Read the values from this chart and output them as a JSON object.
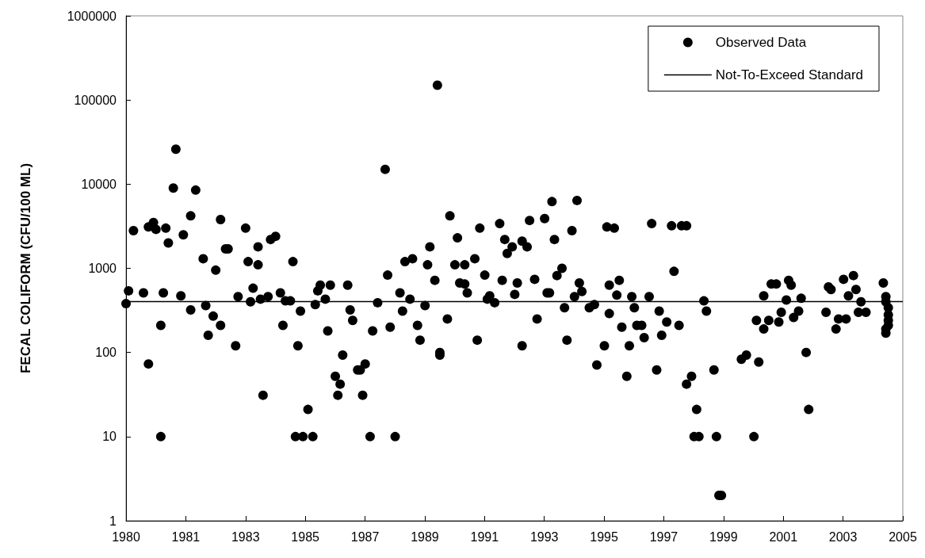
{
  "chart_data": {
    "type": "scatter",
    "ylabel": "FECAL COLIFORM (CFU/100 ML)",
    "x": [
      "1980-01",
      "1980-02",
      "1980-04",
      "1980-08",
      "1980-10",
      "1980-10",
      "1980-12",
      "1981-01",
      "1981-03",
      "1981-03",
      "1981-04",
      "1981-05",
      "1981-06",
      "1981-08",
      "1981-09",
      "1981-11",
      "1981-12",
      "1982-03",
      "1982-03",
      "1982-05",
      "1982-08",
      "1982-09",
      "1982-10",
      "1982-12",
      "1983-01",
      "1983-03",
      "1983-03",
      "1983-05",
      "1983-06",
      "1983-09",
      "1983-10",
      "1984-01",
      "1984-02",
      "1984-03",
      "1984-04",
      "1984-06",
      "1984-06",
      "1984-07",
      "1984-08",
      "1984-10",
      "1984-11",
      "1985-01",
      "1985-03",
      "1985-04",
      "1985-05",
      "1985-07",
      "1985-08",
      "1985-09",
      "1985-10",
      "1985-11",
      "1985-12",
      "1986-02",
      "1986-04",
      "1986-05",
      "1986-06",
      "1986-07",
      "1986-09",
      "1986-10",
      "1986-11",
      "1987-01",
      "1987-02",
      "1987-03",
      "1987-04",
      "1987-06",
      "1987-07",
      "1987-08",
      "1987-10",
      "1987-11",
      "1987-12",
      "1988-01",
      "1988-03",
      "1988-04",
      "1988-06",
      "1988-09",
      "1988-10",
      "1988-11",
      "1989-01",
      "1989-03",
      "1989-04",
      "1989-05",
      "1989-07",
      "1989-08",
      "1989-10",
      "1989-11",
      "1990-01",
      "1990-02",
      "1990-03",
      "1990-05",
      "1990-06",
      "1990-07",
      "1990-07",
      "1990-10",
      "1990-11",
      "1991-01",
      "1991-02",
      "1991-03",
      "1991-05",
      "1991-05",
      "1991-06",
      "1991-09",
      "1991-10",
      "1991-11",
      "1992-01",
      "1992-02",
      "1992-03",
      "1992-05",
      "1992-07",
      "1992-08",
      "1992-09",
      "1992-10",
      "1992-12",
      "1993-01",
      "1993-02",
      "1993-04",
      "1993-04",
      "1993-06",
      "1993-07",
      "1993-09",
      "1993-10",
      "1994-01",
      "1994-02",
      "1994-03",
      "1994-04",
      "1994-05",
      "1994-06",
      "1994-08",
      "1994-09",
      "1994-10",
      "1994-12",
      "1995-01",
      "1995-02",
      "1995-03",
      "1995-04",
      "1995-07",
      "1995-09",
      "1995-10",
      "1996-01",
      "1996-02",
      "1996-03",
      "1996-03",
      "1996-05",
      "1996-06",
      "1996-07",
      "1996-08",
      "1996-10",
      "1996-11",
      "1996-12",
      "1997-01",
      "1997-02",
      "1997-04",
      "1997-05",
      "1997-07",
      "1997-08",
      "1997-10",
      "1997-11",
      "1997-12",
      "1998-02",
      "1998-04",
      "1998-05",
      "1998-07",
      "1998-08",
      "1998-10",
      "1998-10",
      "1998-12",
      "1999-01",
      "1999-02",
      "1999-03",
      "1999-05",
      "1999-06",
      "1999-09",
      "1999-10",
      "1999-11",
      "1999-12",
      "2000-08",
      "2000-10",
      "2001-01",
      "2001-02",
      "2001-03",
      "2001-05",
      "2001-05",
      "2001-07",
      "2001-08",
      "2001-10",
      "2001-11",
      "2001-12",
      "2002-02",
      "2002-03",
      "2002-04",
      "2002-05",
      "2002-07",
      "2002-08",
      "2002-10",
      "2002-11",
      "2003-06",
      "2003-07",
      "2003-08",
      "2003-10",
      "2003-11",
      "2004-01",
      "2004-02",
      "2004-03",
      "2004-05",
      "2004-06",
      "2004-07",
      "2004-08",
      "2004-10",
      "2005-05",
      "2005-06",
      "2005-06",
      "2005-07",
      "2005-07",
      "2005-07",
      "2005-07",
      "2005-06",
      "2005-06"
    ],
    "series": [
      {
        "name": "Observed Data",
        "color": "#000000",
        "values": [
          380,
          540,
          2800,
          510,
          3100,
          73,
          3500,
          2900,
          210,
          10,
          510,
          3000,
          2000,
          9000,
          26000,
          470,
          2500,
          4200,
          320,
          8500,
          1300,
          360,
          160,
          270,
          950,
          210,
          3800,
          1700,
          1700,
          120,
          460,
          3000,
          1200,
          400,
          580,
          1100,
          1800,
          430,
          31,
          460,
          2200,
          2400,
          510,
          210,
          410,
          410,
          1200,
          10,
          120,
          310,
          10,
          21,
          10,
          370,
          540,
          630,
          430,
          180,
          630,
          52,
          31,
          42,
          93,
          630,
          320,
          240,
          62,
          62,
          31,
          73,
          10,
          180,
          390,
          15000,
          830,
          200,
          10,
          510,
          310,
          1200,
          430,
          1300,
          210,
          140,
          360,
          1100,
          1800,
          720,
          150000,
          100,
          93,
          250,
          4200,
          1100,
          2300,
          670,
          1100,
          650,
          510,
          1300,
          140,
          3000,
          830,
          430,
          470,
          390,
          3400,
          720,
          2200,
          1500,
          1800,
          490,
          670,
          120,
          2100,
          1800,
          3700,
          740,
          250,
          3900,
          510,
          510,
          6200,
          2200,
          820,
          1000,
          340,
          140,
          2800,
          460,
          6400,
          670,
          530,
          340,
          370,
          71,
          120,
          3100,
          630,
          290,
          3000,
          480,
          720,
          200,
          52,
          120,
          460,
          340,
          210,
          210,
          150,
          460,
          3400,
          62,
          310,
          160,
          230,
          3200,
          920,
          210,
          3200,
          3200,
          42,
          52,
          10,
          21,
          10,
          410,
          310,
          62,
          10,
          2,
          2,
          83,
          93,
          10,
          240,
          77,
          190,
          470,
          240,
          650,
          650,
          230,
          300,
          420,
          720,
          630,
          260,
          310,
          440,
          100,
          21,
          300,
          600,
          560,
          190,
          250,
          740,
          250,
          470,
          820,
          560,
          300,
          400,
          300,
          670,
          460,
          400,
          340,
          280,
          240,
          210,
          190,
          170
        ]
      }
    ],
    "ref_lines": [
      {
        "axis": "y",
        "value": 400,
        "label": "Not-To-Exceed Standard",
        "color": "#000000"
      }
    ],
    "xlim": [
      "1980-01-01",
      "2005-12-25"
    ],
    "xticks": [
      {
        "value": "1980-01-01",
        "label": "1980"
      },
      {
        "value": "1981-12-31",
        "label": "1981"
      },
      {
        "value": "1983-12-31",
        "label": "1983"
      },
      {
        "value": "1985-12-30",
        "label": "1985"
      },
      {
        "value": "1987-12-30",
        "label": "1987"
      },
      {
        "value": "1989-12-29",
        "label": "1989"
      },
      {
        "value": "1991-12-29",
        "label": "1991"
      },
      {
        "value": "1993-12-28",
        "label": "1993"
      },
      {
        "value": "1995-12-28",
        "label": "1995"
      },
      {
        "value": "1997-12-27",
        "label": "1997"
      },
      {
        "value": "1999-12-27",
        "label": "1999"
      },
      {
        "value": "2001-12-26",
        "label": "2001"
      },
      {
        "value": "2003-12-26",
        "label": "2003"
      },
      {
        "value": "2005-12-25",
        "label": "2005"
      }
    ],
    "ylim": [
      1,
      1000000
    ],
    "yticks": [
      1,
      10,
      100,
      1000,
      10000,
      100000,
      1000000
    ],
    "log": "y",
    "grid": false,
    "legend": "top right",
    "marker": "circle"
  }
}
